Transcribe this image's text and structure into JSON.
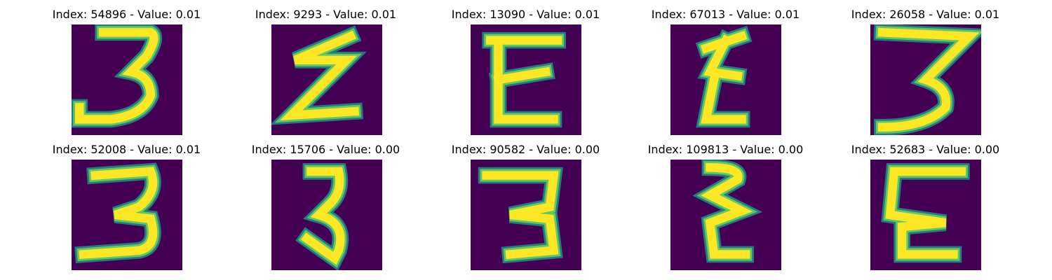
{
  "colors": {
    "background": "#440154",
    "ink_core": "#fde725",
    "ink_mid": "#5ec962",
    "ink_edge": "#21918c"
  },
  "panels": [
    {
      "title": "Index: 54896 - Value: 0.01",
      "glyph": "3"
    },
    {
      "title": "Index: 9293 - Value: 0.01",
      "glyph": "Z"
    },
    {
      "title": "Index: 13090 - Value: 0.01",
      "glyph": "E"
    },
    {
      "title": "Index: 67013 - Value: 0.01",
      "glyph": "Ƹ"
    },
    {
      "title": "Index: 26058 - Value: 0.01",
      "glyph": "3"
    },
    {
      "title": "Index: 52008 - Value: 0.01",
      "glyph": "3"
    },
    {
      "title": "Index: 15706 - Value: 0.00",
      "glyph": "3"
    },
    {
      "title": "Index: 90582 - Value: 0.00",
      "glyph": "3"
    },
    {
      "title": "Index: 109813 - Value: 0.00",
      "glyph": "Ɛ"
    },
    {
      "title": "Index: 52683 - Value: 0.00",
      "glyph": "E"
    }
  ]
}
